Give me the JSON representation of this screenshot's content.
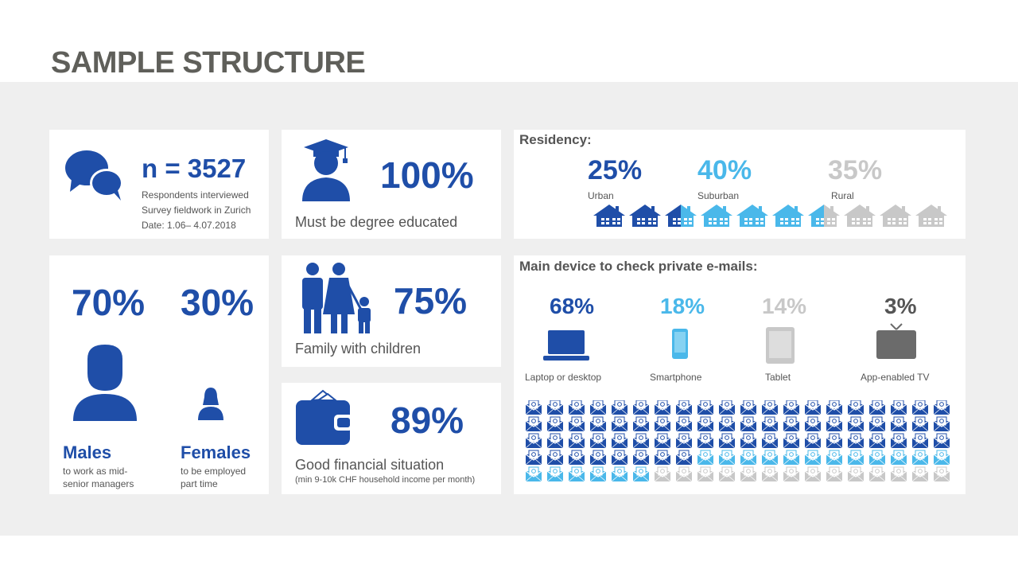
{
  "title": "SAMPLE STRUCTURE",
  "colors": {
    "dark_blue": "#1f4ea8",
    "light_blue": "#4ab8ea",
    "light_gray": "#c8c8c8",
    "dark_gray": "#6b6b6b",
    "title_gray": "#5f5f5a"
  },
  "sample": {
    "n": "n = 3527",
    "line1": "Respondents interviewed",
    "line2": "Survey fieldwork in Zurich",
    "line3": "Date: 1.06– 4.07.2018",
    "icon": "speech-bubbles-icon"
  },
  "education": {
    "percent": "100%",
    "label": "Must be degree educated",
    "icon": "graduate-icon"
  },
  "residency": {
    "title": "Residency:",
    "items": [
      {
        "percent": "25%",
        "label": "Urban",
        "value": 25,
        "color": "#1f4ea8"
      },
      {
        "percent": "40%",
        "label": "Suburban",
        "value": 40,
        "color": "#4ab8ea"
      },
      {
        "percent": "35%",
        "label": "Rural",
        "value": 35,
        "color": "#c8c8c8"
      }
    ]
  },
  "gender": {
    "male_percent": "70%",
    "female_percent": "30%",
    "male_title": "Males",
    "male_desc1": "to work as mid-",
    "male_desc2": "senior managers",
    "female_title": "Females",
    "female_desc1": "to be employed",
    "female_desc2": "part time"
  },
  "family": {
    "percent": "75%",
    "label": "Family with children",
    "icon": "family-icon"
  },
  "finance": {
    "percent": "89%",
    "label": "Good financial situation",
    "sub": "(min 9-10k CHF household income per month)",
    "icon": "wallet-icon"
  },
  "devices": {
    "title": "Main device to check private e-mails:",
    "items": [
      {
        "percent": "68%",
        "label": "Laptop or desktop",
        "value": 68,
        "color": "#1f4ea8",
        "icon": "laptop-icon"
      },
      {
        "percent": "18%",
        "label": "Smartphone",
        "value": 18,
        "color": "#4ab8ea",
        "icon": "smartphone-icon"
      },
      {
        "percent": "14%",
        "label": "Tablet",
        "value": 14,
        "color": "#c8c8c8",
        "icon": "tablet-icon"
      },
      {
        "percent": "3%",
        "label": "App-enabled  TV",
        "value": 3,
        "color": "#6b6b6b",
        "icon": "tv-icon"
      }
    ]
  }
}
